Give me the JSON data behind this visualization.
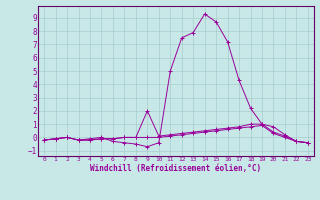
{
  "xlabel": "Windchill (Refroidissement éolien,°C)",
  "bg_color": "#c8e8e8",
  "grid_color": "#a8cccc",
  "line_color": "#990099",
  "spine_color": "#660066",
  "xlim": [
    -0.5,
    23.5
  ],
  "ylim": [
    -1.4,
    9.9
  ],
  "xticks": [
    0,
    1,
    2,
    3,
    4,
    5,
    6,
    7,
    8,
    9,
    10,
    11,
    12,
    13,
    14,
    15,
    16,
    17,
    18,
    19,
    20,
    21,
    22,
    23
  ],
  "yticks": [
    -1,
    0,
    1,
    2,
    3,
    4,
    5,
    6,
    7,
    8,
    9
  ],
  "series1": {
    "x": [
      0,
      1,
      2,
      3,
      4,
      5,
      6,
      7,
      8,
      9,
      10,
      11,
      12,
      13,
      14,
      15,
      16,
      17,
      18,
      19,
      20,
      21,
      22,
      23
    ],
    "y": [
      -0.2,
      -0.1,
      0.0,
      -0.2,
      -0.1,
      0.0,
      -0.3,
      -0.4,
      -0.5,
      -0.7,
      -0.4,
      5.0,
      7.5,
      7.9,
      9.3,
      8.7,
      7.2,
      4.3,
      2.2,
      1.0,
      0.4,
      0.1,
      -0.3,
      -0.4
    ]
  },
  "series2": {
    "x": [
      0,
      1,
      2,
      3,
      4,
      5,
      6,
      7,
      8,
      9,
      10,
      11,
      12,
      13,
      14,
      15,
      16,
      17,
      18,
      19,
      20,
      21,
      22,
      23
    ],
    "y": [
      -0.2,
      -0.1,
      0.0,
      -0.2,
      -0.2,
      -0.1,
      -0.1,
      0.0,
      0.0,
      2.0,
      0.1,
      0.2,
      0.3,
      0.4,
      0.5,
      0.6,
      0.7,
      0.8,
      1.0,
      1.0,
      0.8,
      0.2,
      -0.3,
      -0.4
    ]
  },
  "series3": {
    "x": [
      0,
      1,
      2,
      3,
      4,
      5,
      6,
      7,
      8,
      9,
      10,
      11,
      12,
      13,
      14,
      15,
      16,
      17,
      18,
      19,
      20,
      21,
      22,
      23
    ],
    "y": [
      -0.2,
      -0.1,
      0.0,
      -0.2,
      -0.2,
      -0.1,
      -0.1,
      0.0,
      0.0,
      0.0,
      0.0,
      0.1,
      0.2,
      0.3,
      0.4,
      0.5,
      0.6,
      0.7,
      0.8,
      0.9,
      0.3,
      0.0,
      -0.3,
      -0.4
    ]
  }
}
